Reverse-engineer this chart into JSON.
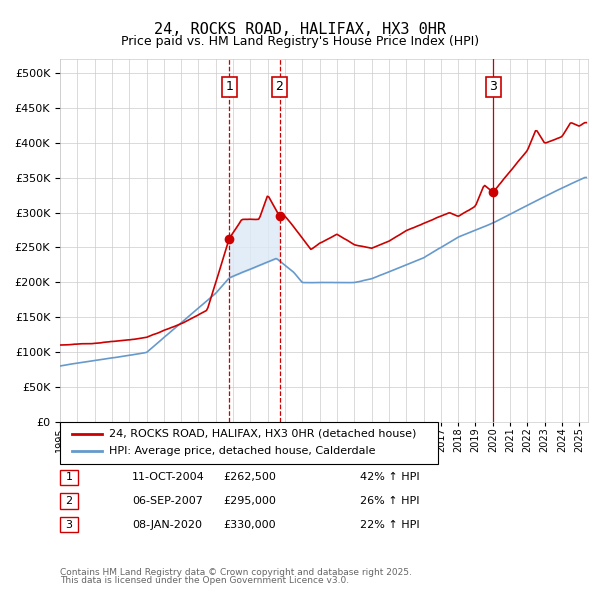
{
  "title": "24, ROCKS ROAD, HALIFAX, HX3 0HR",
  "subtitle": "Price paid vs. HM Land Registry's House Price Index (HPI)",
  "legend_line1": "24, ROCKS ROAD, HALIFAX, HX3 0HR (detached house)",
  "legend_line2": "HPI: Average price, detached house, Calderdale",
  "footer1": "Contains HM Land Registry data © Crown copyright and database right 2025.",
  "footer2": "This data is licensed under the Open Government Licence v3.0.",
  "red_color": "#cc0000",
  "blue_color": "#6699cc",
  "bg_color": "#dce9f5",
  "grid_color": "#cccccc",
  "transactions": [
    {
      "label": "1",
      "date": "11-OCT-2004",
      "year": 2004.78,
      "price": 262500,
      "hpi_pct": "42% ↑ HPI"
    },
    {
      "label": "2",
      "date": "06-SEP-2007",
      "year": 2007.68,
      "price": 295000,
      "hpi_pct": "26% ↑ HPI"
    },
    {
      "label": "3",
      "date": "08-JAN-2020",
      "year": 2020.03,
      "price": 330000,
      "hpi_pct": "22% ↑ HPI"
    }
  ],
  "ylim": [
    0,
    520000
  ],
  "ytick_step": 50000,
  "xmin": 1995.0,
  "xmax": 2025.5
}
